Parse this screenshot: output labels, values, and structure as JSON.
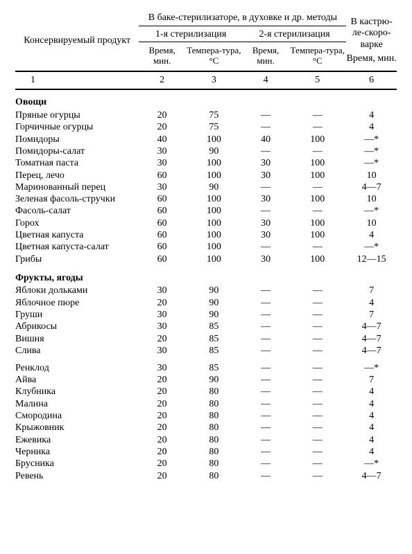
{
  "headers": {
    "product": "Консервируемый продукт",
    "bak_group": "В баке-стерилизаторе, в духовке и др. методы",
    "pressure": "В кастрю-ле-скоро-варке",
    "ster1": "1-я стерилизация",
    "ster2": "2-я стерилизация",
    "time": "Время, мин.",
    "temp": "Темпера-тура, °С",
    "colnums": [
      "1",
      "2",
      "3",
      "4",
      "5",
      "6"
    ]
  },
  "sections": [
    {
      "title": "Овощи",
      "rows": [
        {
          "p": "Пряные огурцы",
          "t1": "20",
          "c1": "75",
          "t2": "—",
          "c2": "—",
          "pc": "4"
        },
        {
          "p": "Горчичные огурцы",
          "t1": "20",
          "c1": "75",
          "t2": "—",
          "c2": "—",
          "pc": "4"
        },
        {
          "p": "Помидоры",
          "t1": "40",
          "c1": "100",
          "t2": "40",
          "c2": "100",
          "pc": "—*"
        },
        {
          "p": "Помидоры-салат",
          "t1": "30",
          "c1": "90",
          "t2": "—",
          "c2": "—",
          "pc": "—*"
        },
        {
          "p": "Томатная паста",
          "t1": "30",
          "c1": "100",
          "t2": "30",
          "c2": "100",
          "pc": "—*"
        },
        {
          "p": "Перец, лечо",
          "t1": "60",
          "c1": "100",
          "t2": "30",
          "c2": "100",
          "pc": "10"
        },
        {
          "p": "Маринованный перец",
          "t1": "30",
          "c1": "90",
          "t2": "—",
          "c2": "—",
          "pc": "4—7"
        },
        {
          "p": "Зеленая фасоль-стручки",
          "t1": "60",
          "c1": "100",
          "t2": "30",
          "c2": "100",
          "pc": "10"
        },
        {
          "p": "Фасоль-салат",
          "t1": "60",
          "c1": "100",
          "t2": "—",
          "c2": "—",
          "pc": "—*"
        },
        {
          "p": "Горох",
          "t1": "60",
          "c1": "100",
          "t2": "30",
          "c2": "100",
          "pc": "10"
        },
        {
          "p": "Цветная капуста",
          "t1": "60",
          "c1": "100",
          "t2": "30",
          "c2": "100",
          "pc": "4"
        },
        {
          "p": "Цветная капуста-салат",
          "t1": "60",
          "c1": "100",
          "t2": "—",
          "c2": "—",
          "pc": "—*"
        },
        {
          "p": "Грибы",
          "t1": "60",
          "c1": "100",
          "t2": "30",
          "c2": "100",
          "pc": "12—15"
        }
      ]
    },
    {
      "title": "Фрукты, ягоды",
      "rows": [
        {
          "p": "Яблоки дольками",
          "t1": "30",
          "c1": "90",
          "t2": "—",
          "c2": "—",
          "pc": "7"
        },
        {
          "p": "Яблочное пюре",
          "t1": "20",
          "c1": "90",
          "t2": "—",
          "c2": "—",
          "pc": "4"
        },
        {
          "p": "Груши",
          "t1": "30",
          "c1": "90",
          "t2": "—",
          "c2": "—",
          "pc": "7"
        },
        {
          "p": "Абрикосы",
          "t1": "30",
          "c1": "85",
          "t2": "—",
          "c2": "—",
          "pc": "4—7"
        },
        {
          "p": "Вишня",
          "t1": "20",
          "c1": "85",
          "t2": "—",
          "c2": "—",
          "pc": "4—7"
        },
        {
          "p": "Слива",
          "t1": "30",
          "c1": "85",
          "t2": "—",
          "c2": "—",
          "pc": "4—7"
        },
        {
          "p": "Ренклод",
          "t1": "30",
          "c1": "85",
          "t2": "—",
          "c2": "—",
          "pc": "—*",
          "gap": true
        },
        {
          "p": "Айва",
          "t1": "20",
          "c1": "90",
          "t2": "—",
          "c2": "—",
          "pc": "7"
        },
        {
          "p": "Клубника",
          "t1": "20",
          "c1": "80",
          "t2": "—",
          "c2": "—",
          "pc": "4"
        },
        {
          "p": "Малина",
          "t1": "20",
          "c1": "80",
          "t2": "—",
          "c2": "—",
          "pc": "4"
        },
        {
          "p": "Смородина",
          "t1": "20",
          "c1": "80",
          "t2": "—",
          "c2": "—",
          "pc": "4"
        },
        {
          "p": "Крыжовник",
          "t1": "20",
          "c1": "80",
          "t2": "—",
          "c2": "—",
          "pc": "4"
        },
        {
          "p": "Ежевика",
          "t1": "20",
          "c1": "80",
          "t2": "—",
          "c2": "—",
          "pc": "4"
        },
        {
          "p": "Черника",
          "t1": "20",
          "c1": "80",
          "t2": "—",
          "c2": "—",
          "pc": "4"
        },
        {
          "p": "Брусника",
          "t1": "20",
          "c1": "80",
          "t2": "—",
          "c2": "—",
          "pc": "—*"
        },
        {
          "p": "Ревень",
          "t1": "20",
          "c1": "80",
          "t2": "—",
          "c2": "—",
          "pc": "4—7"
        }
      ]
    }
  ]
}
